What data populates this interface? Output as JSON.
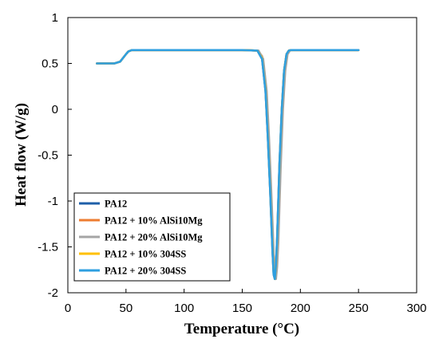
{
  "chart_data": {
    "type": "line",
    "title": "",
    "xlabel": "Temperature (°C)",
    "ylabel": "Heat flow (W/g)",
    "xlim": [
      0,
      300
    ],
    "ylim": [
      -2,
      1
    ],
    "xticks": [
      0,
      50,
      100,
      150,
      200,
      250,
      300
    ],
    "yticks": [
      1,
      0.5,
      0,
      -0.5,
      -1,
      -1.5,
      -2
    ],
    "xtick_labels": [
      "0",
      "50",
      "100",
      "150",
      "200",
      "250",
      "300"
    ],
    "ytick_labels": [
      "1",
      "0.5",
      "0",
      "-0.5",
      "-1",
      "-1.5",
      "-2"
    ],
    "grid": false,
    "legend_position": "bottom-left",
    "series": [
      {
        "name": "PA12",
        "color": "#1f5fa8",
        "x": [
          25,
          40,
          45,
          50,
          52,
          55,
          60,
          100,
          150,
          163,
          167,
          170,
          172,
          174,
          176,
          177,
          178,
          179,
          180,
          182,
          184,
          186,
          188,
          190,
          192,
          200,
          250
        ],
        "y": [
          0.5,
          0.5,
          0.52,
          0.6,
          0.63,
          0.645,
          0.645,
          0.645,
          0.645,
          0.64,
          0.55,
          0.2,
          -0.3,
          -0.9,
          -1.55,
          -1.8,
          -1.85,
          -1.7,
          -1.4,
          -0.6,
          0.0,
          0.42,
          0.6,
          0.64,
          0.645,
          0.645,
          0.645
        ]
      },
      {
        "name": "PA12 + 10% AlSi10Mg",
        "color": "#ed7d31",
        "x": [
          25,
          40,
          45,
          50,
          52,
          55,
          60,
          100,
          150,
          163,
          167,
          170,
          172,
          174,
          176,
          177,
          178,
          179,
          180,
          182,
          184,
          186,
          188,
          190,
          192,
          200,
          250
        ],
        "y": [
          0.5,
          0.5,
          0.52,
          0.6,
          0.63,
          0.645,
          0.645,
          0.645,
          0.645,
          0.64,
          0.58,
          0.28,
          -0.2,
          -0.8,
          -1.45,
          -1.75,
          -1.84,
          -1.75,
          -1.45,
          -0.7,
          -0.05,
          0.4,
          0.6,
          0.64,
          0.645,
          0.645,
          0.645
        ]
      },
      {
        "name": "PA12 + 20% AlSi10Mg",
        "color": "#a5a5a5",
        "x": [
          25,
          40,
          45,
          50,
          52,
          55,
          60,
          100,
          150,
          164,
          168,
          171,
          173,
          175,
          177,
          178,
          179,
          180,
          181,
          183,
          185,
          187,
          189,
          191,
          193,
          200,
          250
        ],
        "y": [
          0.5,
          0.5,
          0.52,
          0.6,
          0.63,
          0.645,
          0.645,
          0.645,
          0.645,
          0.64,
          0.55,
          0.2,
          -0.3,
          -0.9,
          -1.55,
          -1.78,
          -1.85,
          -1.72,
          -1.45,
          -0.65,
          0.0,
          0.42,
          0.6,
          0.64,
          0.645,
          0.645,
          0.645
        ]
      },
      {
        "name": "PA12 + 10% 304SS",
        "color": "#ffc000",
        "x": [
          25,
          40,
          45,
          50,
          52,
          55,
          60,
          100,
          150,
          163,
          167,
          170,
          172,
          174,
          176,
          177,
          178,
          179,
          180,
          182,
          184,
          186,
          188,
          190,
          192,
          200,
          250
        ],
        "y": [
          0.5,
          0.5,
          0.52,
          0.6,
          0.63,
          0.645,
          0.645,
          0.645,
          0.645,
          0.64,
          0.56,
          0.22,
          -0.28,
          -0.88,
          -1.52,
          -1.78,
          -1.85,
          -1.72,
          -1.42,
          -0.62,
          0.0,
          0.42,
          0.6,
          0.64,
          0.645,
          0.645,
          0.645
        ]
      },
      {
        "name": "PA12 + 20% 304SS",
        "color": "#2e9fe0",
        "x": [
          25,
          40,
          45,
          50,
          52,
          55,
          60,
          100,
          150,
          163,
          167,
          170,
          172,
          174,
          176,
          177,
          178,
          179,
          180,
          182,
          184,
          186,
          188,
          190,
          192,
          200,
          250
        ],
        "y": [
          0.5,
          0.5,
          0.52,
          0.6,
          0.63,
          0.645,
          0.645,
          0.645,
          0.645,
          0.64,
          0.55,
          0.2,
          -0.3,
          -0.9,
          -1.55,
          -1.8,
          -1.85,
          -1.7,
          -1.4,
          -0.6,
          0.0,
          0.42,
          0.6,
          0.64,
          0.645,
          0.645,
          0.645
        ]
      }
    ]
  }
}
